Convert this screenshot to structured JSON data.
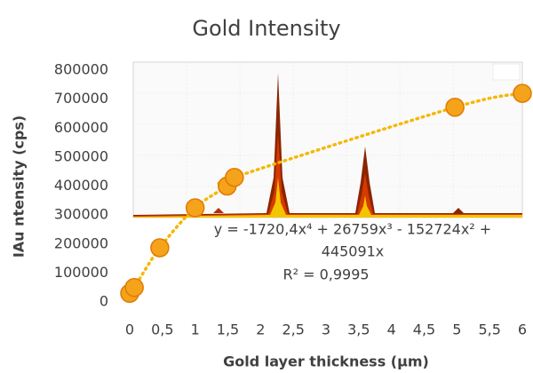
{
  "chart_data": {
    "type": "scatter",
    "title": "Gold Intensity",
    "x_label": "Gold layer thickness (µm)",
    "y_label": "IAu ntensity (cps)",
    "series": [
      {
        "name": "Gold Intensity",
        "color": "#f5a31a",
        "x": [
          0,
          0.07,
          0.46,
          1.0,
          1.49,
          1.6,
          4.97,
          6
        ],
        "values": [
          30000,
          50000,
          187000,
          325000,
          400000,
          430000,
          672000,
          720000
        ]
      }
    ],
    "trendline": {
      "color": "#f5b800",
      "equation": [
        "y = -1720,4x⁴ + 26759x³ - 152724x² +",
        "445091x"
      ],
      "r2": "R² = 0,9995"
    },
    "xlim": [
      0,
      6
    ],
    "xticks": [
      0,
      {
        "value": 0.5,
        "label": "0,5"
      },
      1,
      {
        "value": 1.5,
        "label": "1,5"
      },
      2,
      {
        "value": 2.5,
        "label": "2,5"
      },
      3,
      {
        "value": 3.5,
        "label": "3,5"
      },
      4,
      {
        "value": 4.5,
        "label": "4,5"
      },
      5,
      {
        "value": 5.5,
        "label": "5,5"
      },
      6
    ],
    "ylim": [
      0,
      800000
    ],
    "yticks": [
      0,
      100000,
      200000,
      300000,
      400000,
      500000,
      600000,
      700000,
      800000
    ]
  }
}
